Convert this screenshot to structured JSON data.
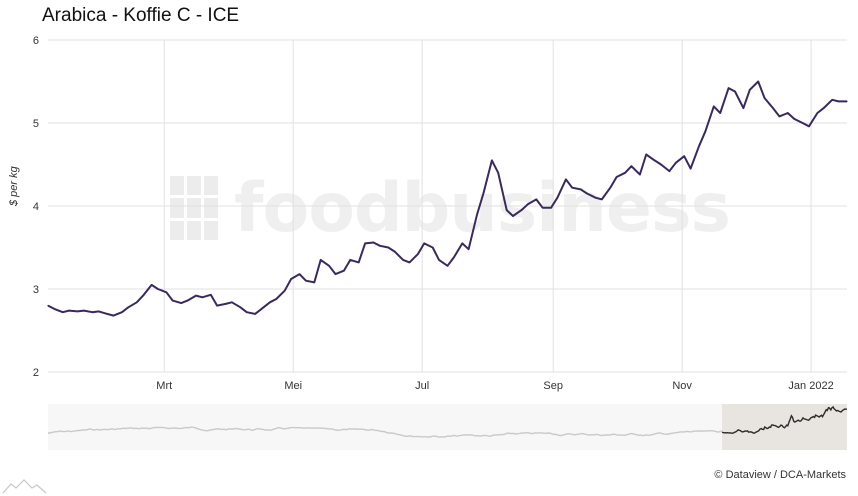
{
  "chart_data": {
    "type": "line",
    "title": "Arabica - Koffie C - ICE",
    "ylabel": "$ per kg",
    "xlabel": "",
    "ylim": [
      2,
      6
    ],
    "yticks": [
      2,
      3,
      4,
      5,
      6
    ],
    "xlim": [
      "2021-01-05",
      "2022-01-18"
    ],
    "x_tick_labels": [
      {
        "label": "Mrt",
        "date": "2021-03-01"
      },
      {
        "label": "Mei",
        "date": "2021-05-01"
      },
      {
        "label": "Jul",
        "date": "2021-07-01"
      },
      {
        "label": "Sep",
        "date": "2021-09-01"
      },
      {
        "label": "Nov",
        "date": "2021-11-01"
      },
      {
        "label": "Jan 2022",
        "date": "2022-01-01"
      }
    ],
    "grid": true,
    "line_color": "#3a2a5c",
    "series": [
      {
        "points": [
          [
            "2021-01-05",
            2.8
          ],
          [
            "2021-01-08",
            2.76
          ],
          [
            "2021-01-12",
            2.72
          ],
          [
            "2021-01-15",
            2.74
          ],
          [
            "2021-01-19",
            2.73
          ],
          [
            "2021-01-22",
            2.74
          ],
          [
            "2021-01-26",
            2.72
          ],
          [
            "2021-01-29",
            2.73
          ],
          [
            "2021-02-02",
            2.7
          ],
          [
            "2021-02-05",
            2.68
          ],
          [
            "2021-02-09",
            2.72
          ],
          [
            "2021-02-12",
            2.78
          ],
          [
            "2021-02-16",
            2.84
          ],
          [
            "2021-02-19",
            2.92
          ],
          [
            "2021-02-23",
            3.05
          ],
          [
            "2021-02-26",
            3.0
          ],
          [
            "2021-03-02",
            2.96
          ],
          [
            "2021-03-05",
            2.86
          ],
          [
            "2021-03-09",
            2.83
          ],
          [
            "2021-03-12",
            2.86
          ],
          [
            "2021-03-16",
            2.92
          ],
          [
            "2021-03-19",
            2.9
          ],
          [
            "2021-03-23",
            2.93
          ],
          [
            "2021-03-26",
            2.8
          ],
          [
            "2021-03-30",
            2.82
          ],
          [
            "2021-04-02",
            2.84
          ],
          [
            "2021-04-06",
            2.78
          ],
          [
            "2021-04-09",
            2.72
          ],
          [
            "2021-04-13",
            2.7
          ],
          [
            "2021-04-16",
            2.76
          ],
          [
            "2021-04-20",
            2.84
          ],
          [
            "2021-04-23",
            2.88
          ],
          [
            "2021-04-27",
            2.98
          ],
          [
            "2021-04-30",
            3.12
          ],
          [
            "2021-05-04",
            3.18
          ],
          [
            "2021-05-07",
            3.1
          ],
          [
            "2021-05-11",
            3.08
          ],
          [
            "2021-05-14",
            3.35
          ],
          [
            "2021-05-18",
            3.28
          ],
          [
            "2021-05-21",
            3.18
          ],
          [
            "2021-05-25",
            3.22
          ],
          [
            "2021-05-28",
            3.35
          ],
          [
            "2021-06-01",
            3.32
          ],
          [
            "2021-06-04",
            3.55
          ],
          [
            "2021-06-08",
            3.56
          ],
          [
            "2021-06-11",
            3.52
          ],
          [
            "2021-06-15",
            3.5
          ],
          [
            "2021-06-18",
            3.45
          ],
          [
            "2021-06-22",
            3.35
          ],
          [
            "2021-06-25",
            3.32
          ],
          [
            "2021-06-29",
            3.42
          ],
          [
            "2021-07-02",
            3.55
          ],
          [
            "2021-07-06",
            3.5
          ],
          [
            "2021-07-09",
            3.35
          ],
          [
            "2021-07-13",
            3.28
          ],
          [
            "2021-07-16",
            3.38
          ],
          [
            "2021-07-20",
            3.55
          ],
          [
            "2021-07-23",
            3.48
          ],
          [
            "2021-07-27",
            3.9
          ],
          [
            "2021-07-30",
            4.15
          ],
          [
            "2021-08-03",
            4.55
          ],
          [
            "2021-08-06",
            4.4
          ],
          [
            "2021-08-10",
            3.95
          ],
          [
            "2021-08-13",
            3.88
          ],
          [
            "2021-08-17",
            3.95
          ],
          [
            "2021-08-20",
            4.02
          ],
          [
            "2021-08-24",
            4.08
          ],
          [
            "2021-08-27",
            3.98
          ],
          [
            "2021-08-31",
            3.98
          ],
          [
            "2021-09-03",
            4.1
          ],
          [
            "2021-09-07",
            4.32
          ],
          [
            "2021-09-10",
            4.22
          ],
          [
            "2021-09-14",
            4.2
          ],
          [
            "2021-09-17",
            4.15
          ],
          [
            "2021-09-21",
            4.1
          ],
          [
            "2021-09-24",
            4.08
          ],
          [
            "2021-09-28",
            4.22
          ],
          [
            "2021-10-01",
            4.35
          ],
          [
            "2021-10-05",
            4.4
          ],
          [
            "2021-10-08",
            4.48
          ],
          [
            "2021-10-12",
            4.38
          ],
          [
            "2021-10-15",
            4.62
          ],
          [
            "2021-10-19",
            4.55
          ],
          [
            "2021-10-22",
            4.5
          ],
          [
            "2021-10-26",
            4.42
          ],
          [
            "2021-10-29",
            4.52
          ],
          [
            "2021-11-02",
            4.6
          ],
          [
            "2021-11-05",
            4.45
          ],
          [
            "2021-11-09",
            4.72
          ],
          [
            "2021-11-12",
            4.9
          ],
          [
            "2021-11-16",
            5.2
          ],
          [
            "2021-11-19",
            5.12
          ],
          [
            "2021-11-23",
            5.42
          ],
          [
            "2021-11-26",
            5.38
          ],
          [
            "2021-11-30",
            5.18
          ],
          [
            "2021-12-03",
            5.4
          ],
          [
            "2021-12-07",
            5.5
          ],
          [
            "2021-12-10",
            5.3
          ],
          [
            "2021-12-14",
            5.18
          ],
          [
            "2021-12-17",
            5.08
          ],
          [
            "2021-12-21",
            5.12
          ],
          [
            "2021-12-24",
            5.05
          ],
          [
            "2021-12-28",
            5.0
          ],
          [
            "2021-12-31",
            4.96
          ],
          [
            "2022-01-04",
            5.12
          ],
          [
            "2022-01-07",
            5.18
          ],
          [
            "2022-01-11",
            5.28
          ],
          [
            "2022-01-14",
            5.26
          ],
          [
            "2022-01-18",
            5.26
          ]
        ]
      }
    ]
  },
  "navigator": {
    "highlight_fill": "#e8e4e0"
  },
  "watermark": {
    "text": "foodbusiness"
  },
  "credits": {
    "text": "© Dataview / DCA-Markets"
  }
}
